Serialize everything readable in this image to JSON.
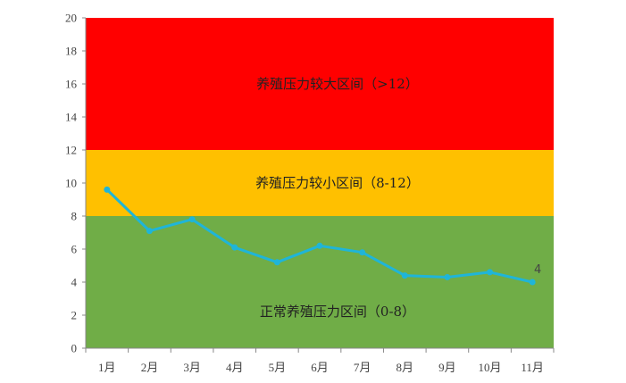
{
  "chart_data": {
    "type": "line",
    "title": "",
    "xlabel": "",
    "ylabel": "",
    "categories": [
      "1月",
      "2月",
      "3月",
      "4月",
      "5月",
      "6月",
      "7月",
      "8月",
      "9月",
      "10月",
      "11月"
    ],
    "series": [
      {
        "name": "",
        "values": [
          9.6,
          7.1,
          7.8,
          6.1,
          5.2,
          6.2,
          5.8,
          4.4,
          4.3,
          4.6,
          4.0
        ],
        "color": "#1fb5d8"
      }
    ],
    "ylim": [
      0,
      20
    ],
    "yticks": [
      0,
      2,
      4,
      6,
      8,
      10,
      12,
      14,
      16,
      18,
      20
    ],
    "grid": false,
    "legend": "none",
    "zones": [
      {
        "from": 0,
        "to": 8,
        "color": "#70ad47",
        "label": "正常养殖压力区间（0-8）"
      },
      {
        "from": 8,
        "to": 12,
        "color": "#ffc000",
        "label": "养殖压力较小区间（8-12）"
      },
      {
        "from": 12,
        "to": 20,
        "color": "#ff0000",
        "label": "养殖压力较大区间（>12）"
      }
    ],
    "data_labels": [
      {
        "index": 10,
        "text": "4"
      }
    ]
  }
}
